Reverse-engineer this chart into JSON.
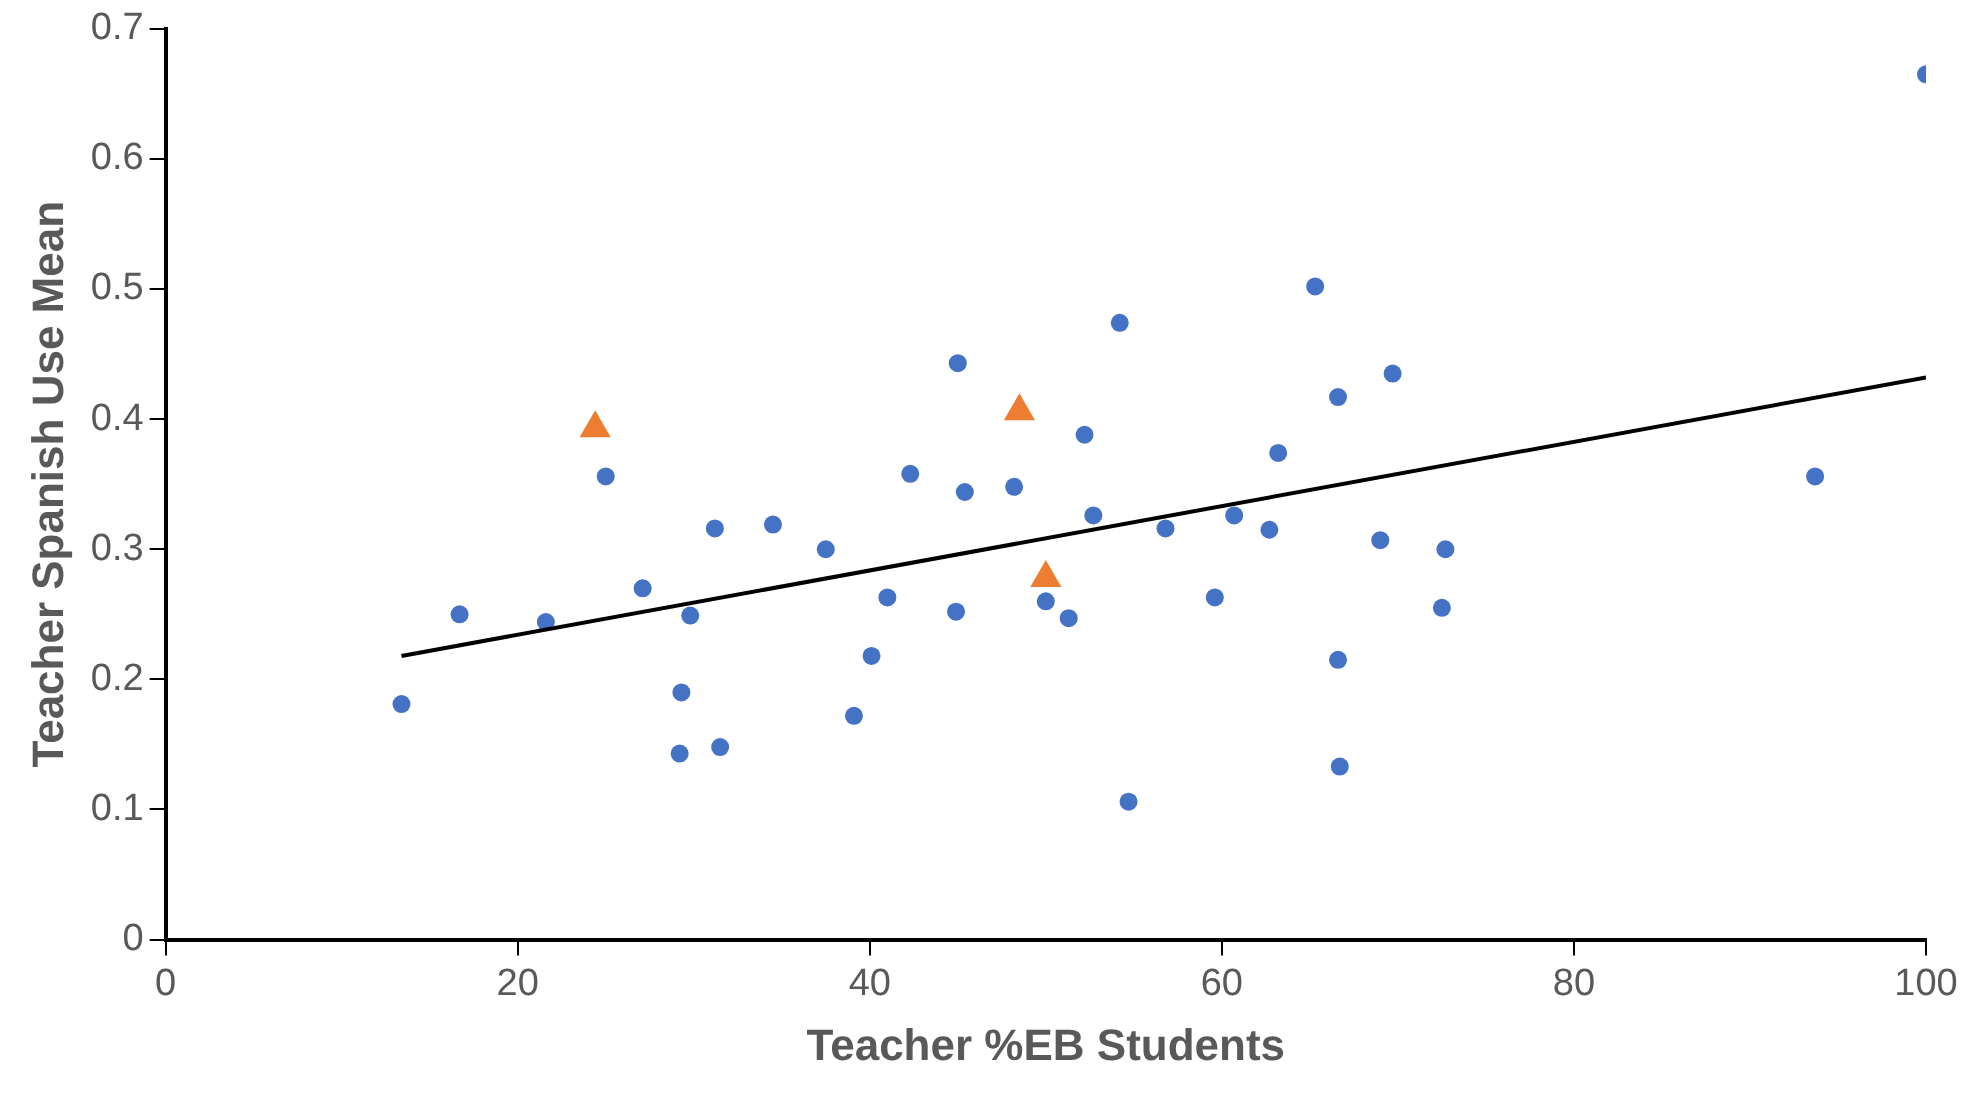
{
  "chart_data": {
    "type": "scatter",
    "xlabel": "Teacher %EB Students",
    "ylabel": "Teacher Spanish Use Mean",
    "xlim": [
      0,
      100
    ],
    "xticks": [
      0,
      20,
      40,
      60,
      80,
      100
    ],
    "ylim": [
      0,
      0.7
    ],
    "yticks": [
      0,
      0.1,
      0.2,
      0.3,
      0.4,
      0.5,
      0.6,
      0.7
    ],
    "grid": false,
    "legend": false,
    "series": [
      {
        "color": "#4472c4",
        "marker": "circle",
        "x": [
          13.4,
          16.7,
          21.6,
          25.0,
          27.1,
          29.2,
          29.3,
          29.8,
          31.2,
          31.5,
          34.5,
          37.5,
          39.1,
          40.1,
          41.0,
          42.3,
          44.9,
          45.0,
          45.4,
          48.2,
          50.0,
          51.3,
          52.2,
          52.7,
          54.2,
          54.7,
          56.8,
          59.6,
          60.7,
          62.7,
          63.2,
          65.3,
          66.6,
          66.6,
          66.7,
          69.0,
          69.7,
          72.7,
          72.5,
          93.7,
          100
        ],
        "values": [
          0.181,
          0.25,
          0.244,
          0.356,
          0.27,
          0.143,
          0.19,
          0.249,
          0.316,
          0.148,
          0.319,
          0.3,
          0.172,
          0.218,
          0.263,
          0.358,
          0.252,
          0.443,
          0.344,
          0.348,
          0.26,
          0.247,
          0.388,
          0.326,
          0.474,
          0.106,
          0.316,
          0.263,
          0.326,
          0.315,
          0.374,
          0.502,
          0.417,
          0.215,
          0.133,
          0.307,
          0.435,
          0.3,
          0.255,
          0.356,
          0.665
        ]
      },
      {
        "color": "#ed7d31",
        "marker": "triangle",
        "x": [
          24.4,
          48.5,
          50.0
        ],
        "values": [
          0.393,
          0.406,
          0.278
        ]
      },
      {
        "type": "line",
        "color": "#000000",
        "marker": "none",
        "line_style": "solid",
        "x": [
          13.4,
          100
        ],
        "values": [
          0.218,
          0.432
        ]
      }
    ]
  }
}
